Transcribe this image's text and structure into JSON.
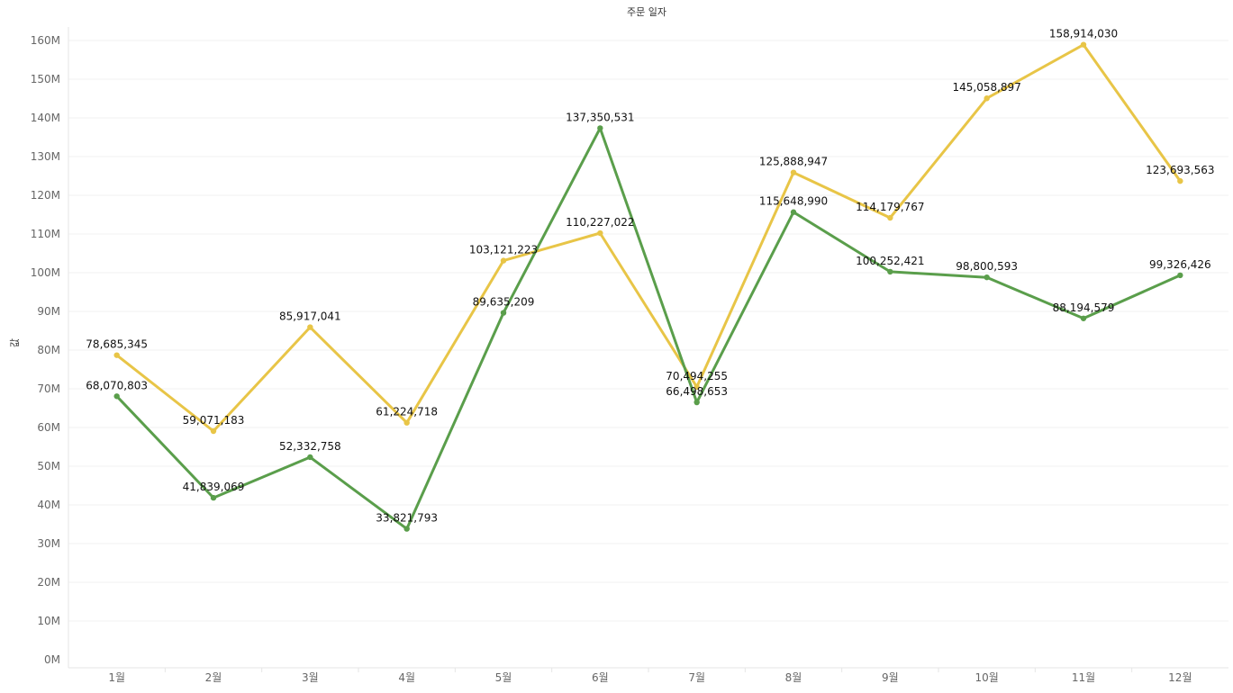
{
  "chart_data": {
    "type": "line",
    "title": "주문 일자",
    "xlabel": "",
    "ylabel": "값",
    "categories": [
      "1월",
      "2월",
      "3월",
      "4월",
      "5월",
      "6월",
      "7월",
      "8월",
      "9월",
      "10월",
      "11월",
      "12월"
    ],
    "ylim": [
      0,
      165000000
    ],
    "yticks": [
      {
        "value": 0,
        "label": "0M"
      },
      {
        "value": 10000000,
        "label": "10M"
      },
      {
        "value": 20000000,
        "label": "20M"
      },
      {
        "value": 30000000,
        "label": "30M"
      },
      {
        "value": 40000000,
        "label": "40M"
      },
      {
        "value": 50000000,
        "label": "50M"
      },
      {
        "value": 60000000,
        "label": "60M"
      },
      {
        "value": 70000000,
        "label": "70M"
      },
      {
        "value": 80000000,
        "label": "80M"
      },
      {
        "value": 90000000,
        "label": "90M"
      },
      {
        "value": 100000000,
        "label": "100M"
      },
      {
        "value": 110000000,
        "label": "110M"
      },
      {
        "value": 120000000,
        "label": "120M"
      },
      {
        "value": 130000000,
        "label": "130M"
      },
      {
        "value": 140000000,
        "label": "140M"
      },
      {
        "value": 150000000,
        "label": "150M"
      },
      {
        "value": 160000000,
        "label": "160M"
      }
    ],
    "grid": true,
    "legend": "none",
    "series": [
      {
        "color": "#e8c547",
        "values": [
          78685345,
          59071183,
          85917041,
          61224718,
          103121223,
          110227022,
          70494255,
          125888947,
          114179767,
          145058897,
          158914030,
          123693563
        ],
        "labels": [
          "78,685,345",
          "59,071,183",
          "85,917,041",
          "61,224,718",
          "103,121,223",
          "110,227,022",
          "70,494,255",
          "125,888,947",
          "114,179,767",
          "145,058,897",
          "158,914,030",
          "123,693,563"
        ]
      },
      {
        "color": "#5a9e4b",
        "values": [
          68070803,
          41839069,
          52332758,
          33821793,
          89635209,
          137350531,
          66498653,
          115648990,
          100252421,
          98800593,
          88194579,
          99326426
        ],
        "labels": [
          "68,070,803",
          "41,839,069",
          "52,332,758",
          "33,821,793",
          "89,635,209",
          "137,350,531",
          "66,498,653",
          "115,648,990",
          "100,252,421",
          "98,800,593",
          "88,194,579",
          "99,326,426"
        ]
      }
    ]
  }
}
